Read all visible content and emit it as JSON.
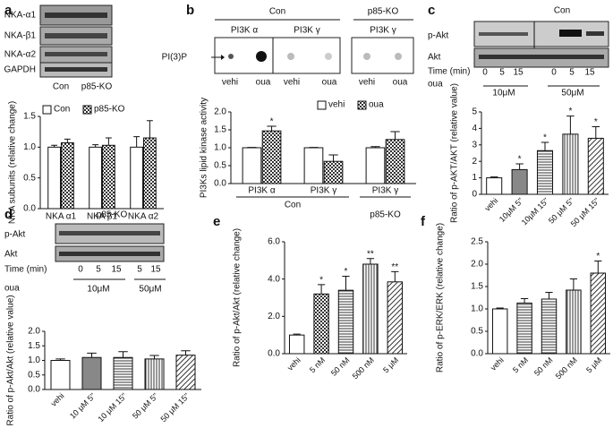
{
  "chart_data": [
    {
      "type": "bar",
      "panel": "a",
      "blot_texts": [
        "NKA-α1",
        "NKA-β1",
        "NKA-α2",
        "GAPDH",
        "Con",
        "p85-KO"
      ],
      "ylabel": "NKA subunits (relative change)",
      "categories": [
        "NKA α1",
        "NKA β1",
        "NKA α2"
      ],
      "series": [
        {
          "name": "Con",
          "pattern": "white",
          "values": [
            1.0,
            1.0,
            1.0
          ],
          "errors": [
            0.03,
            0.04,
            0.17
          ],
          "annotations": [
            null,
            null,
            null
          ]
        },
        {
          "name": "p85-KO",
          "pattern": "crosshatch",
          "values": [
            1.07,
            1.03,
            1.15
          ],
          "errors": [
            0.06,
            0.12,
            0.28
          ],
          "annotations": [
            null,
            null,
            null
          ]
        }
      ],
      "ylim": [
        0,
        1.5
      ],
      "yticks": [
        {
          "value": 0,
          "label": "0.0"
        },
        0.5,
        {
          "value": 1,
          "label": "1.0"
        },
        1.5
      ],
      "legend": "top"
    },
    {
      "type": "bar",
      "panel": "b",
      "blot_texts": [
        "Con",
        "p85-KO",
        "PI3K α",
        "PI3K γ",
        "PI3K γ",
        "PI(3)P",
        "vehi",
        "oua",
        "vehi",
        "oua",
        "vehi",
        "oua"
      ],
      "ylabel": "PI3Ks lipid kinase activity",
      "categories": [
        "PI3K α",
        "PI3K γ",
        "PI3K γ"
      ],
      "group_labels": [
        "Con",
        "p85-KO"
      ],
      "series": [
        {
          "name": "vehi",
          "pattern": "white",
          "values": [
            1.0,
            1.0,
            1.0
          ],
          "errors": [
            0.01,
            0.01,
            0.03
          ],
          "annotations": [
            null,
            null,
            null
          ]
        },
        {
          "name": "oua",
          "pattern": "crosshatch",
          "values": [
            1.47,
            0.62,
            1.23
          ],
          "errors": [
            0.13,
            0.18,
            0.22
          ],
          "annotations": [
            "*",
            null,
            null
          ]
        }
      ],
      "ylim": [
        0,
        2
      ],
      "yticks": [
        {
          "value": 0,
          "label": "0.0"
        },
        0.5,
        {
          "value": 1,
          "label": "1.0"
        },
        1.5,
        {
          "value": 2,
          "label": "2.0"
        }
      ],
      "legend": "top-right"
    },
    {
      "type": "bar",
      "panel": "c",
      "blot_texts": [
        "Con",
        "p-Akt",
        "Akt",
        "Time (min)",
        "0",
        "5",
        "15",
        "0",
        "5",
        "15",
        "oua",
        "10μM",
        "50μM"
      ],
      "ylabel": "Ratio of p-AKT/AKT (relative value)",
      "categories": [
        "vehi",
        "10μM 5''",
        "10μM 15''",
        "50 μM 5''",
        "50 μM 15''"
      ],
      "values": [
        1.0,
        1.5,
        2.65,
        3.65,
        3.4
      ],
      "errors": [
        0.05,
        0.35,
        0.5,
        1.1,
        0.7
      ],
      "annotations": [
        null,
        "*",
        "*",
        "*",
        "*"
      ],
      "patterns": [
        "white",
        "gray",
        "horizontal",
        "vertical",
        "diagonal"
      ],
      "ylim": [
        0,
        5
      ],
      "yticks": [
        0,
        1,
        2,
        3,
        4,
        5
      ]
    },
    {
      "type": "bar",
      "panel": "d",
      "blot_texts": [
        "p85-KO",
        "p-Akt",
        "Akt",
        "Time (min)",
        "0",
        "5",
        "15",
        "5",
        "15",
        "oua",
        "10μM",
        "50μM"
      ],
      "ylabel": "Ratio of p-Akt/Akt (relative value)",
      "categories": [
        "vehi",
        "10 μM 5''",
        "10 μM 15''",
        "50 μM 5''",
        "50 μM 15''"
      ],
      "values": [
        1.0,
        1.1,
        1.1,
        1.05,
        1.18
      ],
      "errors": [
        0.05,
        0.15,
        0.2,
        0.12,
        0.15
      ],
      "annotations": [
        null,
        null,
        null,
        null,
        null
      ],
      "patterns": [
        "white",
        "gray",
        "horizontal",
        "vertical",
        "diagonal"
      ],
      "ylim": [
        0,
        2
      ],
      "yticks": [
        {
          "value": 0,
          "label": "0.0"
        },
        0.5,
        {
          "value": 1,
          "label": "1.0"
        },
        1.5,
        {
          "value": 2,
          "label": "2.0"
        }
      ]
    },
    {
      "type": "bar",
      "panel": "e",
      "ylabel": "Ratio of p-Akt/Akt (relative change)",
      "categories": [
        "vehi",
        "5 nM",
        "50 nM",
        "500 nM",
        "5 μM"
      ],
      "values": [
        1.0,
        3.2,
        3.4,
        4.8,
        3.85
      ],
      "errors": [
        0.05,
        0.5,
        0.75,
        0.3,
        0.55
      ],
      "annotations": [
        null,
        "*",
        "*",
        "**",
        "**"
      ],
      "patterns": [
        "white",
        "crosshatch",
        "horizontal",
        "vertical",
        "diagonal"
      ],
      "ylim": [
        0,
        6
      ],
      "yticks": [
        {
          "value": 0,
          "label": "0.0"
        },
        {
          "value": 2,
          "label": "2.0"
        },
        {
          "value": 4,
          "label": "4.0"
        },
        {
          "value": 6,
          "label": "6.0"
        }
      ]
    },
    {
      "type": "bar",
      "panel": "f",
      "ylabel": "Ratio of p-ERK/ERK (relative change)",
      "categories": [
        "vehi",
        "5 nM",
        "50 nM",
        "500 nM",
        "5 μM"
      ],
      "values": [
        1.0,
        1.13,
        1.22,
        1.42,
        1.8
      ],
      "errors": [
        0.02,
        0.1,
        0.15,
        0.25,
        0.27
      ],
      "annotations": [
        null,
        null,
        null,
        null,
        "*"
      ],
      "patterns": [
        "white",
        "horizontal",
        "horizontal",
        "vertical",
        "diagonal"
      ],
      "ylim": [
        0,
        2.5
      ],
      "yticks": [
        {
          "value": 0,
          "label": "0.0"
        },
        0.5,
        {
          "value": 1,
          "label": "1.0"
        },
        1.5,
        {
          "value": 2,
          "label": "2.0"
        },
        2.5
      ]
    }
  ]
}
